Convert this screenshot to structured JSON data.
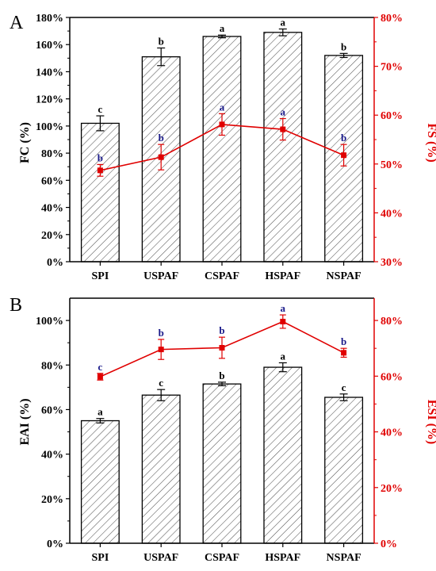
{
  "chart_data": [
    {
      "panel": "A",
      "type": "bar+line",
      "categories": [
        "SPI",
        "USPAF",
        "CSPAF",
        "HSPAF",
        "NSPAF"
      ],
      "bars": {
        "ylabel": "FC (%)",
        "ylim": [
          0,
          180
        ],
        "ticks": [
          0,
          20,
          40,
          60,
          80,
          100,
          120,
          140,
          160,
          180
        ],
        "tick_labels": [
          "0%",
          "20%",
          "40%",
          "60%",
          "80%",
          "100%",
          "120%",
          "140%",
          "160%",
          "180%"
        ],
        "values": [
          102,
          151,
          166,
          169,
          152
        ],
        "errors": [
          5.5,
          6.5,
          1,
          2.5,
          1.5
        ],
        "letters": [
          "c",
          "b",
          "a",
          "a",
          "b"
        ]
      },
      "line": {
        "ylabel": "FS (%)",
        "ylim": [
          30,
          80
        ],
        "ticks": [
          30,
          40,
          50,
          60,
          70,
          80
        ],
        "tick_labels": [
          "30%",
          "40%",
          "50%",
          "60%",
          "70%",
          "80%"
        ],
        "values": [
          48.7,
          51.4,
          58.1,
          57.1,
          51.8
        ],
        "errors": [
          1.2,
          2.6,
          2.2,
          2.2,
          2.2
        ],
        "letters": [
          "b",
          "b",
          "a",
          "a",
          "b"
        ],
        "color": "#e00000"
      }
    },
    {
      "panel": "B",
      "type": "bar+line",
      "categories": [
        "SPI",
        "USPAF",
        "CSPAF",
        "HSPAF",
        "NSPAF"
      ],
      "bars": {
        "ylabel": "EAI (%)",
        "ylim": [
          0,
          110
        ],
        "ticks": [
          0,
          20,
          40,
          60,
          80,
          100
        ],
        "tick_labels": [
          "0%",
          "20%",
          "40%",
          "60%",
          "80%",
          "100%"
        ],
        "values": [
          55,
          66.5,
          71.5,
          79,
          65.5
        ],
        "errors": [
          1,
          2.5,
          0.8,
          2,
          1.5
        ],
        "letters": [
          "a",
          "c",
          "b",
          "a",
          "c"
        ]
      },
      "line": {
        "ylabel": "ESI (%)",
        "ylim": [
          0,
          88
        ],
        "ticks": [
          0,
          20,
          40,
          60,
          80
        ],
        "tick_labels": [
          "0%",
          "20%",
          "40%",
          "60%",
          "80%"
        ],
        "values": [
          59.8,
          69.6,
          70.2,
          79.6,
          68.4
        ],
        "errors": [
          1.2,
          3.6,
          3.8,
          2.4,
          1.6
        ],
        "letters": [
          "c",
          "b",
          "b",
          "a",
          "b"
        ],
        "color": "#e00000"
      }
    }
  ],
  "colors": {
    "bar_edge": "#000000",
    "hatch": "#555555",
    "line": "#e00000",
    "sig_line_letter": "#1a1a8a"
  }
}
